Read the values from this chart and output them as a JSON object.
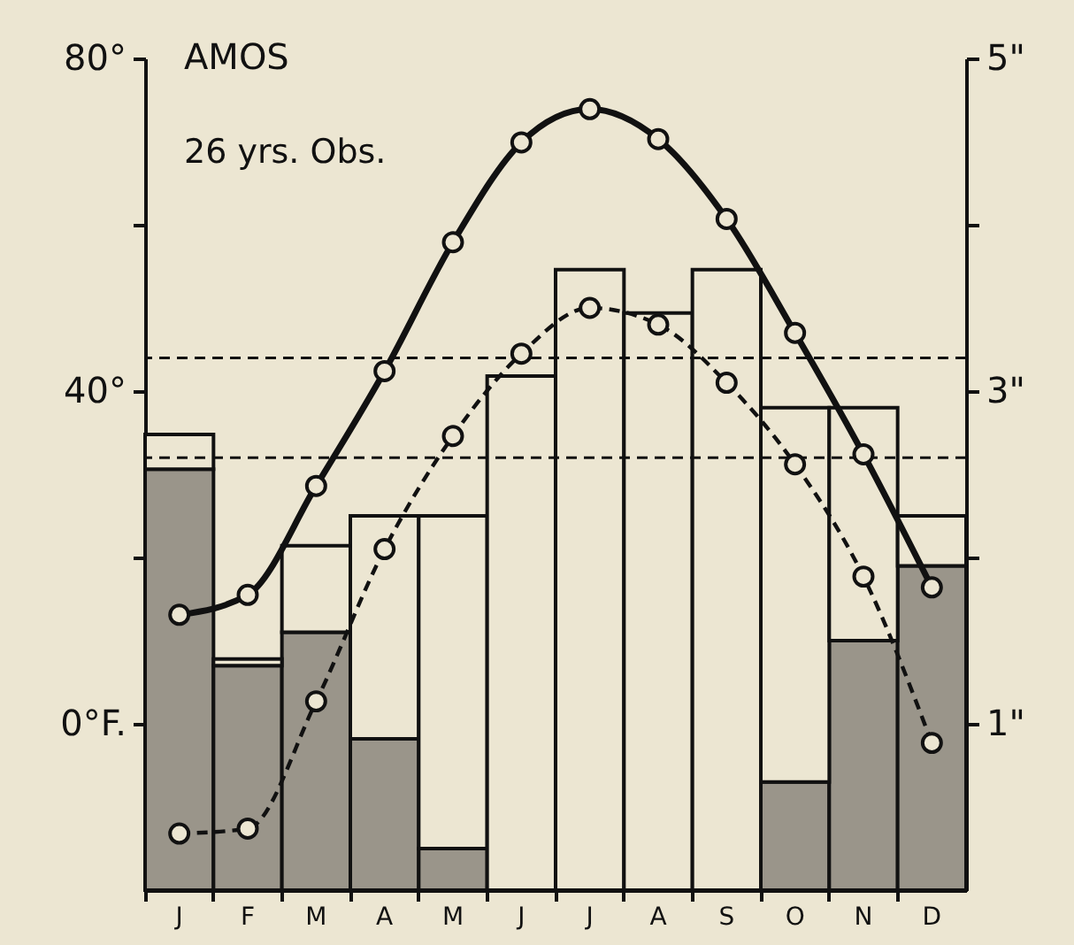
{
  "chart_data": {
    "type": "bar",
    "title": "AMOS",
    "subtitle": "26 yrs. Obs.",
    "categories": [
      "J",
      "F",
      "M",
      "A",
      "M",
      "J",
      "J",
      "A",
      "S",
      "O",
      "N",
      "D"
    ],
    "stacked": true,
    "series": [
      {
        "axis": "y2",
        "color": "#9a958a",
        "values": [
          2.53,
          1.35,
          1.55,
          0.91,
          0.25,
          0,
          0,
          0,
          0,
          0.65,
          1.5,
          1.95
        ]
      },
      {
        "axis": "y2",
        "color": "#ece6d2",
        "values": [
          0.21,
          0.04,
          0.52,
          1.34,
          2.0,
          3.09,
          3.73,
          3.47,
          3.73,
          2.25,
          1.4,
          0.3
        ]
      },
      {
        "type": "line",
        "axis": "y",
        "color": "#111111",
        "line_style": "solid",
        "marker": "circle",
        "values": [
          13.1,
          15.5,
          28.6,
          42.4,
          57.9,
          69.9,
          73.9,
          70.3,
          60.7,
          47.0,
          32.4,
          16.4
        ]
      },
      {
        "type": "line",
        "axis": "y",
        "color": "#111111",
        "line_style": "dashed",
        "marker": "circle",
        "values": [
          -13.2,
          -12.6,
          2.7,
          21.0,
          34.6,
          44.5,
          50.0,
          48.0,
          41.0,
          31.2,
          17.7,
          -2.3
        ]
      }
    ],
    "ylim": [
      -20,
      80
    ],
    "yticks": [
      {
        "value": 80,
        "label": "80°"
      },
      {
        "value": 60,
        "label": null
      },
      {
        "value": 40,
        "label": "40°"
      },
      {
        "value": 20,
        "label": null
      },
      {
        "value": 0,
        "label": "0°F."
      }
    ],
    "y2lim": [
      0,
      5
    ],
    "y2ticks": [
      {
        "value": 5,
        "label": "5\""
      },
      {
        "value": 4,
        "label": null
      },
      {
        "value": 3,
        "label": "3\""
      },
      {
        "value": 2,
        "label": null
      },
      {
        "value": 1,
        "label": "1\""
      }
    ],
    "ref_lines": [
      {
        "axis": "y",
        "value": 44,
        "line_style": "dashed",
        "color": "#111111"
      },
      {
        "axis": "y",
        "value": 32,
        "line_style": "dashed",
        "color": "#111111"
      }
    ],
    "grid": false
  }
}
